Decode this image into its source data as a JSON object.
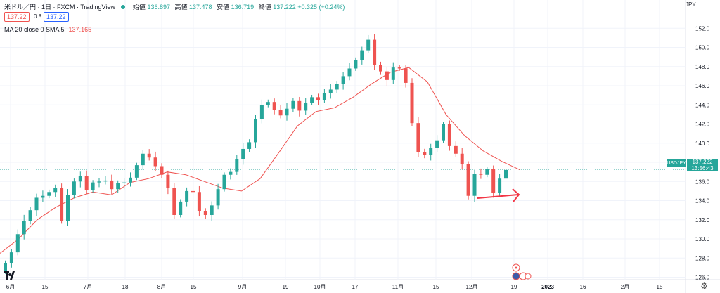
{
  "header": {
    "title": "米ドル／円 · 1日 · FXCM · TradingView",
    "open_label": "始値",
    "open": "136.897",
    "high_label": "高値",
    "high": "137.478",
    "low_label": "安値",
    "low": "136.719",
    "close_label": "終値",
    "close": "137.222",
    "change": "+0.325 (+0.24%)",
    "sell_price": "137.22",
    "spread": "0.8",
    "buy_price": "137.22"
  },
  "indicator": {
    "label": "MA 20 close 0 SMA 5",
    "value": "137.165"
  },
  "price_axis": {
    "currency": "JPY",
    "last_price": "137.222",
    "countdown": "13:56:43",
    "symbol": "USDJPY"
  },
  "colors": {
    "up": "#26a69a",
    "down": "#ef5350",
    "ma": "#ef5350",
    "arrow": "#f23645"
  },
  "icons": [
    "tradingview-logo",
    "event-flag-icon",
    "us-flag-icon",
    "settings-gear-icon"
  ],
  "chart_data": {
    "type": "candlestick",
    "title": "米ドル／円 · 1日 · FXCM",
    "ylim": [
      124.5,
      154
    ],
    "yticks": [
      126,
      128,
      130,
      132,
      134,
      136,
      138,
      140,
      142,
      144,
      146,
      148,
      150,
      152
    ],
    "xtick_labels": [
      "6月",
      "15",
      "7月",
      "18",
      "8月",
      "15",
      "9月",
      "19",
      "10月",
      "17",
      "11月",
      "15",
      "12月",
      "19",
      "2023",
      "16",
      "2月",
      "15"
    ],
    "grid": true,
    "series": [
      {
        "name": "USDJPY",
        "kind": "ohlc",
        "close_path": [
          127.5,
          128.6,
          130.5,
          131.9,
          133.0,
          134.3,
          134.5,
          134.9,
          135.3,
          131.9,
          134.6,
          136.0,
          136.6,
          135.1,
          135.9,
          136.0,
          136.1,
          135.2,
          135.8,
          135.9,
          136.4,
          137.7,
          138.9,
          138.5,
          137.6,
          136.7,
          135.3,
          132.5,
          133.9,
          135.0,
          134.9,
          132.9,
          132.5,
          133.5,
          135.2,
          136.7,
          137.0,
          138.3,
          139.4,
          140.1,
          142.5,
          144.0,
          144.3,
          143.5,
          142.9,
          143.6,
          144.4,
          143.4,
          144.2,
          144.8,
          144.5,
          145.2,
          145.6,
          146.2,
          147.0,
          147.8,
          148.7,
          149.7,
          150.8,
          148.2,
          147.5,
          146.6,
          147.9,
          147.8,
          146.3,
          142.1,
          139.1,
          138.8,
          139.5,
          140.3,
          142.0,
          139.7,
          138.9,
          137.8,
          134.5,
          136.8,
          136.7,
          137.3,
          134.8,
          136.3,
          137.2
        ],
        "last": {
          "open": 136.897,
          "high": 137.478,
          "low": 136.719,
          "close": 137.222
        }
      },
      {
        "name": "MA 20 close 0 SMA 5",
        "kind": "line",
        "values": [
          128.5,
          130.0,
          132.0,
          133.3,
          134.3,
          134.9,
          134.6,
          135.9,
          136.3,
          137.0,
          136.7,
          136.0,
          135.3,
          135.0,
          136.3,
          139.0,
          141.8,
          143.3,
          143.7,
          144.8,
          146.2,
          147.4,
          147.9,
          146.4,
          143.0,
          140.8,
          139.2,
          138.1,
          137.2
        ]
      }
    ],
    "annotations": [
      "arrow-right"
    ]
  }
}
